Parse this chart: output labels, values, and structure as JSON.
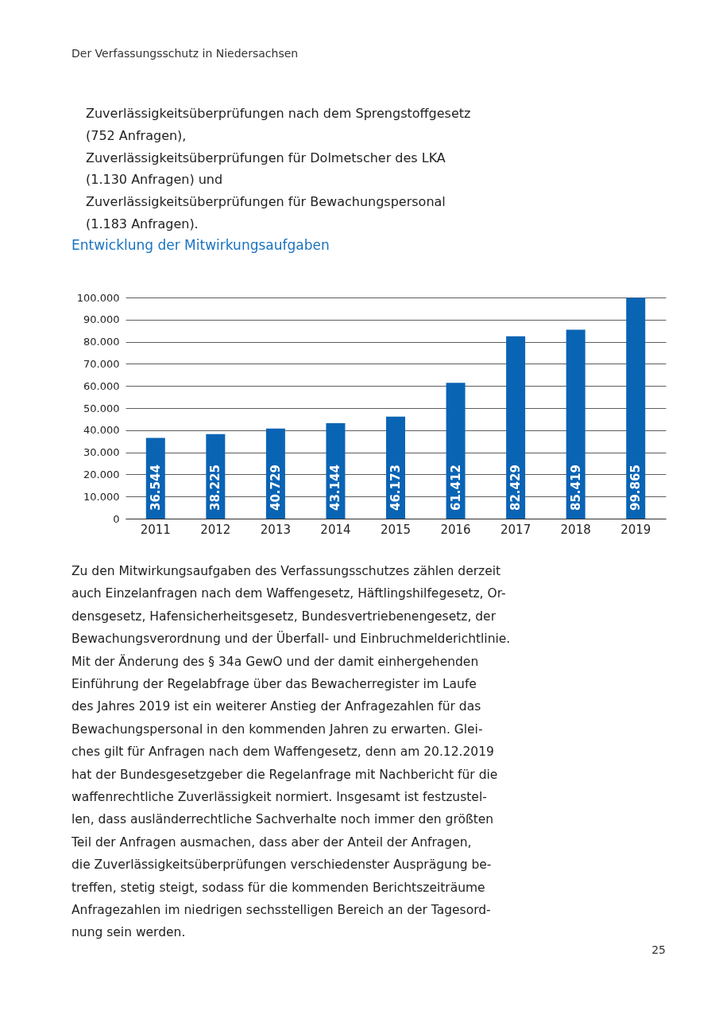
{
  "chart_data": {
    "type": "bar",
    "title": "Entwicklung der Mitwirkungsaufgaben",
    "categories": [
      "2011",
      "2012",
      "2013",
      "2014",
      "2015",
      "2016",
      "2017",
      "2018",
      "2019"
    ],
    "values": [
      36544,
      38225,
      40729,
      43144,
      46173,
      61412,
      82429,
      85419,
      99865
    ],
    "value_labels": [
      "36.544",
      "38.225",
      "40.729",
      "43.144",
      "46.173",
      "61.412",
      "82.429",
      "85.419",
      "99.865"
    ],
    "color": "#0a64b4",
    "ylim": [
      0,
      100000
    ],
    "yticks": [
      0,
      {
        "value": 10000,
        "label": "10.000"
      },
      {
        "value": 20000,
        "label": "20.000"
      },
      {
        "value": 30000,
        "label": "30.000"
      },
      {
        "value": 40000,
        "label": "40.000"
      },
      {
        "value": 50000,
        "label": "50.000"
      },
      {
        "value": 60000,
        "label": "60.000"
      },
      {
        "value": 70000,
        "label": "70.000"
      },
      {
        "value": 80000,
        "label": "80.000"
      },
      {
        "value": 90000,
        "label": "90.000"
      },
      {
        "value": 100000,
        "label": "100.000"
      }
    ],
    "grid": "y",
    "annotations": [
      "Der Verfassungsschutz in Niedersachsen",
      "Zuverlässigkeitsüberprüfungen nach dem Sprengstoffgesetz",
      "(752 Anfragen),",
      "Zuverlässigkeitsüberprüfungen für Dolmetscher des LKA",
      "(1.130 Anfragen) und",
      "Zuverlässigkeitsüberprüfungen für Bewachungspersonal",
      "(1.183 Anfragen).",
      "Zu den Mitwirkungsaufgaben des Verfassungsschutzes zählen derzeit",
      "auch Einzelanfragen nach dem Waffengesetz, Häftlingshilfegesetz, Or-",
      "densgesetz, Hafensicherheitsgesetz, Bundesvertriebenengesetz, der",
      "Bewachungsverordnung und der Überfall- und Einbruchmelderichtlinie.",
      "Mit der Änderung des § 34a GewO und der damit einhergehenden",
      "Einführung der Regelabfrage über das Bewacherregister im Laufe",
      "des Jahres 2019 ist ein weiterer Anstieg der Anfragezahlen für das",
      "Bewachungspersonal in den kommenden Jahren zu erwarten. Glei-",
      "ches gilt für Anfragen nach dem Waffengesetz, denn am 20.12.2019",
      "hat der Bundesgesetzgeber die Regelanfrage mit Nachbericht für die",
      "waffenrechtliche Zuverlässigkeit normiert. Insgesamt ist festzustel-",
      "len, dass ausländerrechtliche Sachverhalte noch immer den größten",
      "Teil der Anfragen ausmachen, dass aber der Anteil der Anfragen,",
      "die Zuverlässigkeitsüberprüfungen verschiedenster Ausprägung be-",
      "treffen, stetig steigt, sodass für die kommenden Berichtszeiträume",
      "Anfragezahlen im niedrigen sechsstelligen Bereich an der Tagesord-",
      "nung sein werden.",
      "25"
    ]
  }
}
